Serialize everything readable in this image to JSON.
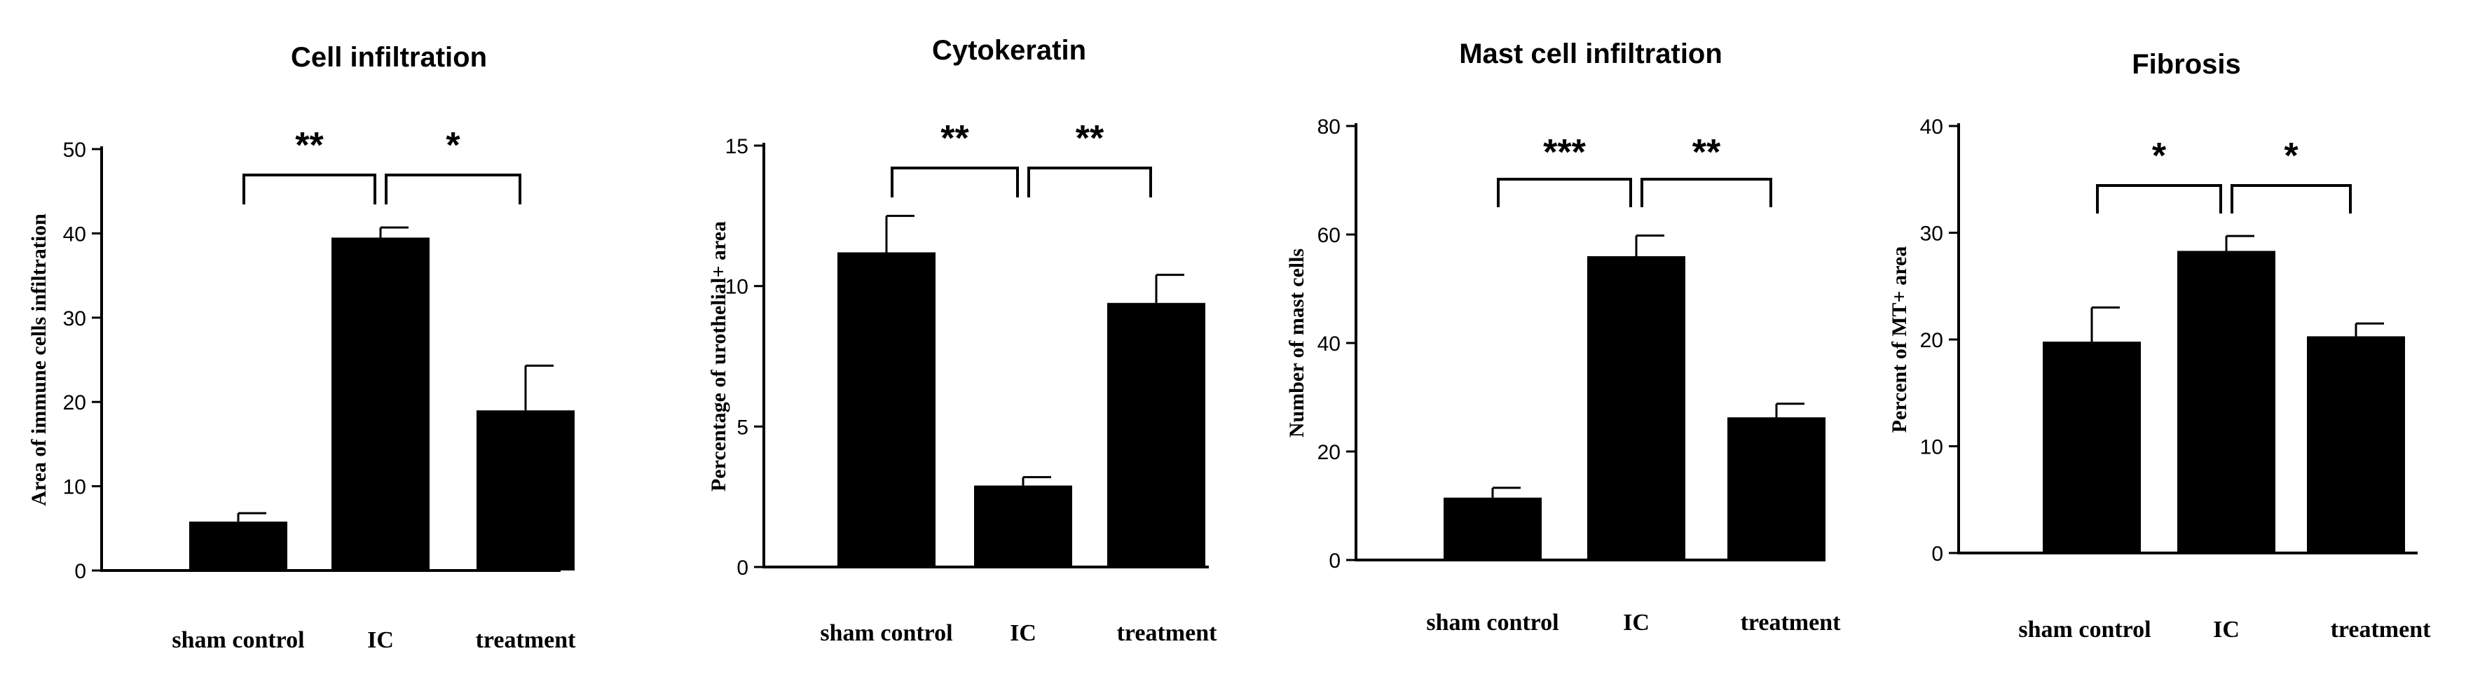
{
  "chart_data": [
    {
      "type": "bar",
      "title": "Cell infiltration",
      "xlabel": "",
      "ylabel": "Area of immune cells infiltration",
      "categories": [
        "sham control",
        "IC",
        "treatment"
      ],
      "values": [
        5.8,
        39.5,
        19
      ],
      "errors": [
        1.0,
        1.2,
        5.3
      ],
      "ylim": [
        0,
        50
      ],
      "yticks": [
        0,
        10,
        20,
        30,
        40,
        50
      ],
      "significance": [
        {
          "from": 0,
          "to": 1,
          "label": "**"
        },
        {
          "from": 1,
          "to": 2,
          "label": "*"
        }
      ]
    },
    {
      "type": "bar",
      "title": "Cytokeratin",
      "xlabel": "",
      "ylabel": "Percentage of urothelial+ area",
      "categories": [
        "sham control",
        "IC",
        "treatment"
      ],
      "values": [
        11.2,
        2.9,
        9.4
      ],
      "errors": [
        1.3,
        0.3,
        1.0
      ],
      "ylim": [
        0,
        15
      ],
      "yticks": [
        0,
        5,
        10,
        15
      ],
      "significance": [
        {
          "from": 0,
          "to": 1,
          "label": "**"
        },
        {
          "from": 1,
          "to": 2,
          "label": "**"
        }
      ]
    },
    {
      "type": "bar",
      "title": "Mast cell infiltration",
      "xlabel": "",
      "ylabel": "Number of mast cells",
      "categories": [
        "sham control",
        "IC",
        "treatment"
      ],
      "values": [
        11.5,
        56,
        26.3
      ],
      "errors": [
        1.8,
        3.8,
        2.5
      ],
      "ylim": [
        0,
        80
      ],
      "yticks": [
        0,
        20,
        40,
        60,
        80
      ],
      "significance": [
        {
          "from": 0,
          "to": 1,
          "label": "***"
        },
        {
          "from": 1,
          "to": 2,
          "label": "**"
        }
      ]
    },
    {
      "type": "bar",
      "title": "Fibrosis",
      "xlabel": "",
      "ylabel": "Percent of MT+ area",
      "categories": [
        "sham control",
        "IC",
        "treatment"
      ],
      "values": [
        19.8,
        28.3,
        20.3
      ],
      "errors": [
        3.2,
        1.4,
        1.2
      ],
      "ylim": [
        0,
        40
      ],
      "yticks": [
        0,
        10,
        20,
        30,
        40
      ],
      "significance": [
        {
          "from": 0,
          "to": 1,
          "label": "*"
        },
        {
          "from": 1,
          "to": 2,
          "label": "*"
        }
      ]
    }
  ]
}
